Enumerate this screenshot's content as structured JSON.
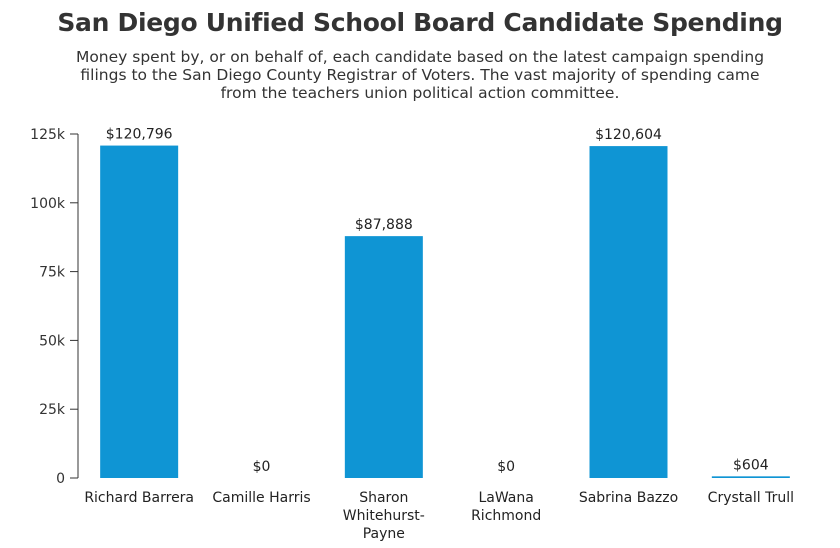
{
  "chart_data": {
    "type": "bar",
    "title": "San Diego Unified School Board Candidate Spending",
    "subtitle": "Money spent by, or on behalf of, each candidate based on the latest campaign spending filings to the San Diego County Registrar of Voters. The vast majority of spending came from the teachers union political action committee.",
    "categories": [
      [
        "Richard Barrera"
      ],
      [
        "Camille Harris"
      ],
      [
        "Sharon",
        "Whitehurst-",
        "Payne"
      ],
      [
        "LaWana",
        "Richmond"
      ],
      [
        "Sabrina Bazzo"
      ],
      [
        "Crystall Trull"
      ]
    ],
    "values": [
      120796,
      0,
      87888,
      0,
      120604,
      604
    ],
    "value_labels": [
      "$120,796",
      "$0",
      "$87,888",
      "$0",
      "$120,604",
      "$604"
    ],
    "ylim": [
      0,
      125000
    ],
    "y_ticks": [
      0,
      25000,
      50000,
      75000,
      100000,
      125000
    ],
    "y_tick_labels": [
      "0",
      "25k",
      "50k",
      "75k",
      "100k",
      "125k"
    ],
    "xlabel": "",
    "ylabel": "",
    "bar_color": "#0f95d4",
    "grid": false,
    "legend": "none"
  }
}
